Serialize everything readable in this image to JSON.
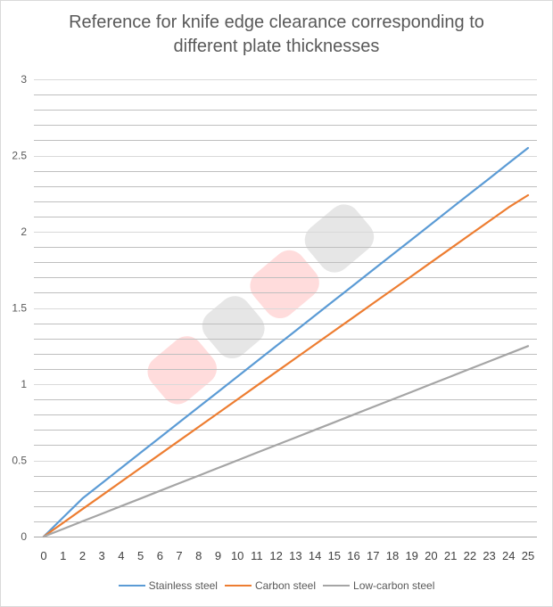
{
  "chart_data": {
    "type": "line",
    "title": "Reference for knife edge clearance corresponding to different plate thicknesses",
    "title_lines": [
      "Reference for knife edge clearance corresponding to",
      "different plate thicknesses"
    ],
    "xlabel": "",
    "ylabel": "",
    "x": [
      0,
      1,
      2,
      3,
      4,
      5,
      6,
      7,
      8,
      9,
      10,
      11,
      12,
      13,
      14,
      15,
      16,
      17,
      18,
      19,
      20,
      21,
      22,
      23,
      24,
      25
    ],
    "x_tick_labels": [
      "0",
      "1",
      "2",
      "3",
      "4",
      "5",
      "6",
      "7",
      "8",
      "9",
      "10",
      "11",
      "12",
      "13",
      "14",
      "15",
      "16",
      "17",
      "18",
      "19",
      "20",
      "21",
      "22",
      "23",
      "24",
      "25"
    ],
    "ylim": [
      0,
      3
    ],
    "y_tick_labels": [
      "0",
      "0.5",
      "1",
      "1.5",
      "2",
      "2.5",
      "3"
    ],
    "y_major_step": 0.5,
    "y_minor_step": 0.1,
    "grid": true,
    "legend_position": "bottom",
    "series": [
      {
        "name": "Stainless steel",
        "color": "#5b9bd5",
        "values": [
          0,
          0.125,
          0.25,
          0.35,
          0.45,
          0.55,
          0.65,
          0.75,
          0.85,
          0.95,
          1.05,
          1.15,
          1.25,
          1.35,
          1.45,
          1.55,
          1.65,
          1.75,
          1.85,
          1.95,
          2.05,
          2.15,
          2.25,
          2.35,
          2.45,
          2.55
        ]
      },
      {
        "name": "Carbon steel",
        "color": "#ed7d31",
        "values": [
          0,
          0.09,
          0.18,
          0.27,
          0.36,
          0.45,
          0.54,
          0.63,
          0.72,
          0.81,
          0.9,
          0.99,
          1.08,
          1.17,
          1.26,
          1.35,
          1.44,
          1.53,
          1.62,
          1.71,
          1.8,
          1.89,
          1.98,
          2.07,
          2.16,
          2.24
        ]
      },
      {
        "name": "Low-carbon steel",
        "color": "#a5a5a5",
        "values": [
          0,
          0.05,
          0.1,
          0.15,
          0.2,
          0.25,
          0.3,
          0.35,
          0.4,
          0.45,
          0.5,
          0.55,
          0.6,
          0.65,
          0.7,
          0.75,
          0.8,
          0.85,
          0.9,
          0.95,
          1.0,
          1.05,
          1.1,
          1.15,
          1.2,
          1.25
        ]
      }
    ]
  },
  "watermark": "DLMA"
}
